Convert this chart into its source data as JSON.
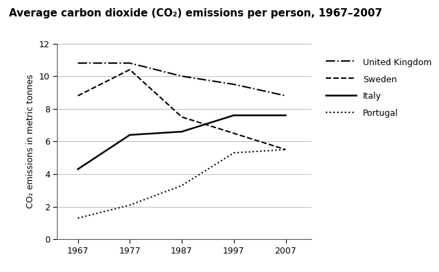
{
  "title": "Average carbon dioxide (CO₂) emissions per person, 1967–2007",
  "ylabel": "CO₂ emissions in metric tonnes",
  "xlabel": "",
  "years": [
    1967,
    1977,
    1987,
    1997,
    2007
  ],
  "united_kingdom": [
    10.8,
    10.8,
    10.0,
    9.5,
    8.8
  ],
  "sweden": [
    8.8,
    10.4,
    7.5,
    6.5,
    5.5
  ],
  "italy": [
    4.3,
    6.4,
    6.6,
    7.6,
    7.6
  ],
  "portugal": [
    1.3,
    2.1,
    3.3,
    5.3,
    5.5
  ],
  "line_color": "#000000",
  "ylim": [
    0,
    12
  ],
  "yticks": [
    0,
    2,
    4,
    6,
    8,
    10,
    12
  ],
  "xticks": [
    1967,
    1977,
    1987,
    1997,
    2007
  ],
  "legend_labels": [
    "United Kingdom",
    "Sweden",
    "Italy",
    "Portugal"
  ],
  "bg_color": "#ffffff",
  "linewidth": 1.5,
  "title_fontsize": 11,
  "label_fontsize": 9,
  "tick_fontsize": 9,
  "legend_fontsize": 9
}
